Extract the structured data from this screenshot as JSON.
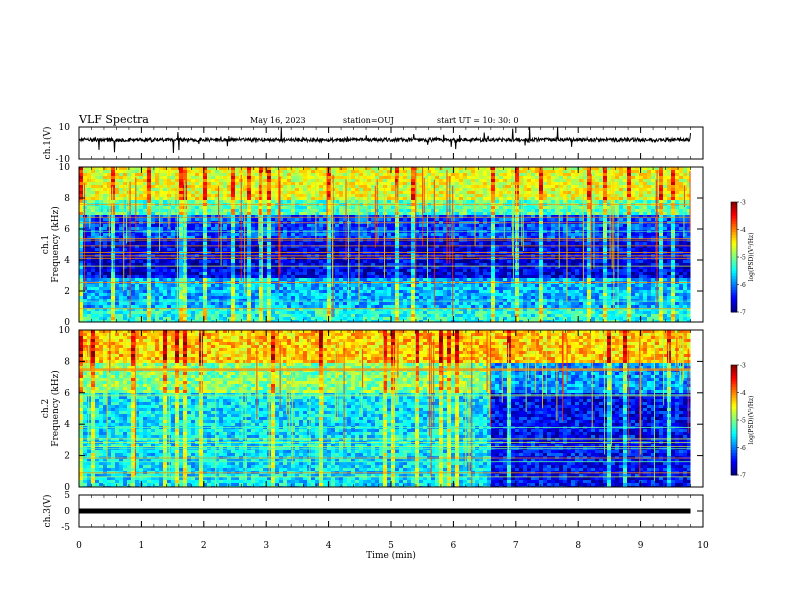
{
  "header": {
    "title": "VLF Spectra",
    "date": "May 16, 2023",
    "station": "station=OUJ",
    "start": "start  UT  =   10: 30: 0"
  },
  "chart_data": [
    {
      "type": "line",
      "ylabel": "ch.1(V)",
      "ylim": [
        -10,
        10
      ],
      "ytick_labels": [
        "10",
        "-10"
      ],
      "x": [
        0,
        9.8
      ],
      "values": [
        2.0,
        2.0
      ],
      "color": "#000000"
    },
    {
      "type": "heatmap",
      "ylabel": "ch.1\nFrequency (kHz)",
      "ylabel_lines": [
        "ch.1",
        "Frequency (kHz)"
      ],
      "ylim": [
        0,
        10
      ],
      "ytick_labels": [
        "0",
        "2",
        "4",
        "6",
        "8",
        "10"
      ],
      "xlim": [
        0,
        9.8
      ],
      "colorbar": {
        "label": "log(PSD)(V²/Hz)",
        "ticks": [
          "-3",
          "-4",
          "-5",
          "-6",
          "-7"
        ],
        "range": [
          -7,
          -3
        ]
      },
      "bands": [
        {
          "f": [
            8.0,
            10.0
          ],
          "level": -4.6
        },
        {
          "f": [
            7.0,
            8.0
          ],
          "level": -5.2
        },
        {
          "f": [
            5.5,
            7.0
          ],
          "level": -6.2
        },
        {
          "f": [
            3.0,
            5.5
          ],
          "level": -6.6
        },
        {
          "f": [
            1.0,
            3.0
          ],
          "level": -5.8
        },
        {
          "f": [
            0.0,
            1.0
          ],
          "level": -5.4
        }
      ]
    },
    {
      "type": "heatmap",
      "ylabel": "ch.2\nFrequency (kHz)",
      "ylabel_lines": [
        "ch.2",
        "Frequency (kHz)"
      ],
      "ylim": [
        0,
        10
      ],
      "ytick_labels": [
        "0",
        "2",
        "4",
        "6",
        "8",
        "10"
      ],
      "xlim": [
        0,
        9.8
      ],
      "colorbar": {
        "label": "log(PSD)(V²/Hz)",
        "ticks": [
          "-3",
          "-4",
          "-5",
          "-6",
          "-7"
        ],
        "range": [
          -7,
          -3
        ]
      },
      "bands": [
        {
          "f": [
            8.0,
            10.0
          ],
          "level": -4.3
        },
        {
          "f": [
            6.0,
            8.0
          ],
          "level": -5.0
        },
        {
          "f": [
            3.0,
            6.0
          ],
          "level": -5.6
        },
        {
          "f": [
            0.0,
            3.0
          ],
          "level": -5.6
        }
      ],
      "transition_time_min": 6.6
    },
    {
      "type": "line",
      "ylabel": "ch.3(V)",
      "ylim": [
        -5,
        5
      ],
      "ytick_labels": [
        "5",
        "0",
        "-5"
      ],
      "x": [
        0,
        9.8
      ],
      "values": [
        0,
        0
      ],
      "color": "#000000"
    }
  ],
  "xaxis": {
    "label": "Time (min)",
    "xlim": [
      0,
      10
    ],
    "tick_labels": [
      "0",
      "1",
      "2",
      "3",
      "4",
      "5",
      "6",
      "7",
      "8",
      "9",
      "10"
    ]
  }
}
